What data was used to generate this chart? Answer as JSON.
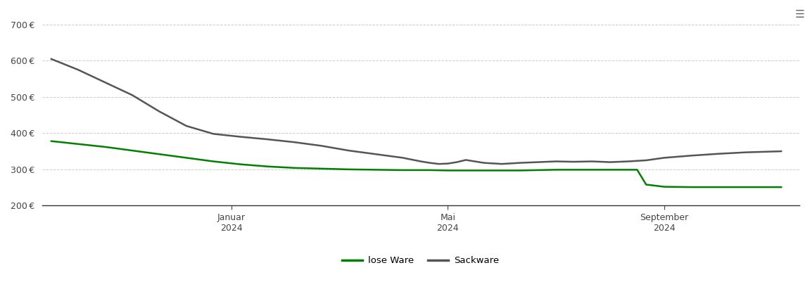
{
  "background_color": "#ffffff",
  "plot_bg_color": "#ffffff",
  "grid_color": "#cccccc",
  "ylim": [
    200,
    730
  ],
  "yticks": [
    200,
    300,
    400,
    500,
    600,
    700
  ],
  "x_tick_labels": [
    "Januar\n2024",
    "Mai\n2024",
    "September\n2024"
  ],
  "lose_ware_color": "#008000",
  "sackware_color": "#555555",
  "legend_lose": "lose Ware",
  "legend_sack": "Sackware",
  "xlim": [
    0,
    420
  ],
  "x_tick_positions": [
    105,
    225,
    345
  ],
  "lose_ware_x": [
    5,
    20,
    35,
    50,
    65,
    80,
    95,
    110,
    125,
    140,
    155,
    170,
    185,
    200,
    215,
    225,
    235,
    245,
    255,
    265,
    275,
    285,
    295,
    305,
    315,
    325,
    330,
    335,
    345,
    360,
    375,
    390,
    410
  ],
  "lose_ware_y": [
    378,
    370,
    362,
    352,
    342,
    332,
    322,
    314,
    308,
    304,
    302,
    300,
    299,
    298,
    298,
    297,
    297,
    297,
    297,
    297,
    298,
    299,
    299,
    299,
    299,
    299,
    299,
    258,
    252,
    251,
    251,
    251,
    251
  ],
  "sackware_x": [
    5,
    20,
    35,
    50,
    65,
    80,
    95,
    110,
    125,
    140,
    155,
    170,
    185,
    200,
    210,
    215,
    220,
    225,
    230,
    235,
    245,
    255,
    265,
    275,
    285,
    295,
    305,
    315,
    325,
    335,
    345,
    360,
    375,
    390,
    410
  ],
  "sackware_y": [
    605,
    575,
    540,
    505,
    460,
    420,
    398,
    390,
    383,
    375,
    365,
    352,
    342,
    332,
    322,
    318,
    315,
    316,
    320,
    326,
    318,
    315,
    318,
    320,
    322,
    321,
    322,
    320,
    322,
    325,
    332,
    338,
    343,
    347,
    350
  ]
}
